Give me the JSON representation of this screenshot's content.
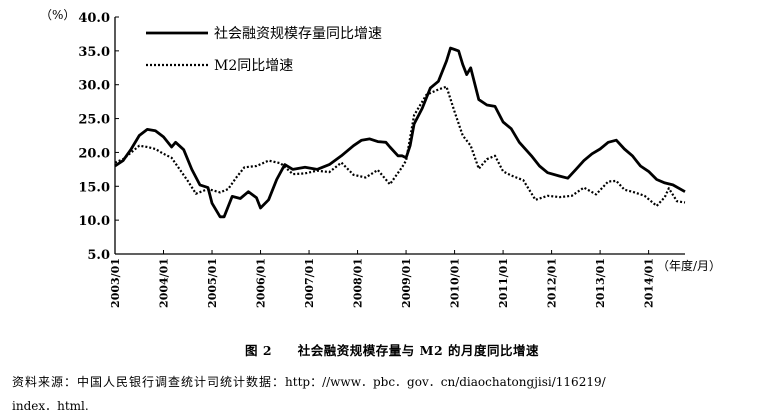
{
  "chart_data": {
    "type": "line",
    "y_unit_label": "（%）",
    "x_unit_label": "（年度/月）",
    "ylim": [
      5.0,
      40.0
    ],
    "y_ticks": [
      "5.0",
      "10.0",
      "15.0",
      "20.0",
      "25.0",
      "30.0",
      "35.0",
      "40.0"
    ],
    "x_ticks": [
      "2003/01",
      "2004/01",
      "2005/01",
      "2006/01",
      "2007/01",
      "2008/01",
      "2009/01",
      "2010/01",
      "2011/01",
      "2012/01",
      "2013/01",
      "2014/01"
    ],
    "xlim": [
      "2003/01",
      "2014/10"
    ],
    "legend_position": "top-left",
    "grid": false,
    "series": [
      {
        "name": "社会融资规模存量同比增速",
        "style": "solid",
        "color": "#000000",
        "points": [
          [
            "2003/01",
            18.0
          ],
          [
            "2003/03",
            18.8
          ],
          [
            "2003/05",
            20.5
          ],
          [
            "2003/07",
            22.5
          ],
          [
            "2003/09",
            23.4
          ],
          [
            "2003/11",
            23.2
          ],
          [
            "2004/01",
            22.3
          ],
          [
            "2004/03",
            20.8
          ],
          [
            "2004/04",
            21.5
          ],
          [
            "2004/06",
            20.4
          ],
          [
            "2004/08",
            17.5
          ],
          [
            "2004/10",
            15.2
          ],
          [
            "2004/12",
            14.8
          ],
          [
            "2005/01",
            12.5
          ],
          [
            "2005/03",
            10.5
          ],
          [
            "2005/04",
            10.5
          ],
          [
            "2005/06",
            13.5
          ],
          [
            "2005/08",
            13.2
          ],
          [
            "2005/10",
            14.2
          ],
          [
            "2005/12",
            13.3
          ],
          [
            "2006/01",
            11.8
          ],
          [
            "2006/03",
            13.0
          ],
          [
            "2006/05",
            16.0
          ],
          [
            "2006/07",
            18.2
          ],
          [
            "2006/09",
            17.5
          ],
          [
            "2006/12",
            17.8
          ],
          [
            "2007/03",
            17.5
          ],
          [
            "2007/06",
            18.2
          ],
          [
            "2007/09",
            19.5
          ],
          [
            "2007/12",
            21.0
          ],
          [
            "2008/02",
            21.8
          ],
          [
            "2008/04",
            22.0
          ],
          [
            "2008/06",
            21.6
          ],
          [
            "2008/08",
            21.5
          ],
          [
            "2008/09",
            20.8
          ],
          [
            "2008/11",
            19.5
          ],
          [
            "2008/12",
            19.5
          ],
          [
            "2009/01",
            19.2
          ],
          [
            "2009/02",
            21.0
          ],
          [
            "2009/03",
            24.2
          ],
          [
            "2009/05",
            26.5
          ],
          [
            "2009/07",
            29.5
          ],
          [
            "2009/09",
            30.5
          ],
          [
            "2009/11",
            33.5
          ],
          [
            "2009/12",
            35.4
          ],
          [
            "2010/01",
            35.2
          ],
          [
            "2010/02",
            35.0
          ],
          [
            "2010/03",
            33.0
          ],
          [
            "2010/04",
            31.5
          ],
          [
            "2010/05",
            32.5
          ],
          [
            "2010/07",
            27.8
          ],
          [
            "2010/09",
            27.0
          ],
          [
            "2010/11",
            26.8
          ],
          [
            "2011/01",
            24.5
          ],
          [
            "2011/03",
            23.5
          ],
          [
            "2011/05",
            21.5
          ],
          [
            "2011/08",
            19.5
          ],
          [
            "2011/10",
            18.0
          ],
          [
            "2011/12",
            17.0
          ],
          [
            "2012/03",
            16.5
          ],
          [
            "2012/05",
            16.2
          ],
          [
            "2012/07",
            17.5
          ],
          [
            "2012/09",
            18.8
          ],
          [
            "2012/11",
            19.8
          ],
          [
            "2013/01",
            20.5
          ],
          [
            "2013/03",
            21.5
          ],
          [
            "2013/05",
            21.8
          ],
          [
            "2013/07",
            20.5
          ],
          [
            "2013/09",
            19.5
          ],
          [
            "2013/11",
            18.0
          ],
          [
            "2014/01",
            17.2
          ],
          [
            "2014/03",
            16.0
          ],
          [
            "2014/05",
            15.5
          ],
          [
            "2014/07",
            15.2
          ],
          [
            "2014/10",
            14.2
          ]
        ]
      },
      {
        "name": "M2同比增速",
        "style": "dotted",
        "color": "#000000",
        "points": [
          [
            "2003/01",
            18.5
          ],
          [
            "2003/03",
            19.0
          ],
          [
            "2003/05",
            20.0
          ],
          [
            "2003/07",
            21.0
          ],
          [
            "2003/09",
            20.8
          ],
          [
            "2003/11",
            20.5
          ],
          [
            "2004/01",
            19.8
          ],
          [
            "2004/03",
            19.2
          ],
          [
            "2004/05",
            17.5
          ],
          [
            "2004/07",
            15.8
          ],
          [
            "2004/09",
            13.9
          ],
          [
            "2004/12",
            14.6
          ],
          [
            "2005/03",
            14.1
          ],
          [
            "2005/05",
            14.6
          ],
          [
            "2005/07",
            16.3
          ],
          [
            "2005/09",
            17.8
          ],
          [
            "2005/12",
            18.0
          ],
          [
            "2006/03",
            18.8
          ],
          [
            "2006/06",
            18.4
          ],
          [
            "2006/09",
            16.8
          ],
          [
            "2006/12",
            16.9
          ],
          [
            "2007/03",
            17.3
          ],
          [
            "2007/06",
            17.1
          ],
          [
            "2007/09",
            18.5
          ],
          [
            "2007/12",
            16.7
          ],
          [
            "2008/03",
            16.3
          ],
          [
            "2008/06",
            17.4
          ],
          [
            "2008/09",
            15.3
          ],
          [
            "2008/12",
            17.8
          ],
          [
            "2009/01",
            18.8
          ],
          [
            "2009/03",
            25.5
          ],
          [
            "2009/06",
            28.5
          ],
          [
            "2009/09",
            29.3
          ],
          [
            "2009/11",
            29.7
          ],
          [
            "2010/01",
            26.0
          ],
          [
            "2010/03",
            22.5
          ],
          [
            "2010/05",
            21.0
          ],
          [
            "2010/07",
            17.6
          ],
          [
            "2010/09",
            19.0
          ],
          [
            "2010/11",
            19.5
          ],
          [
            "2011/01",
            17.2
          ],
          [
            "2011/03",
            16.6
          ],
          [
            "2011/06",
            15.9
          ],
          [
            "2011/09",
            13.0
          ],
          [
            "2011/12",
            13.6
          ],
          [
            "2012/03",
            13.4
          ],
          [
            "2012/06",
            13.6
          ],
          [
            "2012/09",
            14.8
          ],
          [
            "2012/12",
            13.8
          ],
          [
            "2013/03",
            15.7
          ],
          [
            "2013/05",
            15.8
          ],
          [
            "2013/07",
            14.5
          ],
          [
            "2013/09",
            14.2
          ],
          [
            "2013/12",
            13.6
          ],
          [
            "2014/03",
            12.1
          ],
          [
            "2014/05",
            13.4
          ],
          [
            "2014/06",
            14.7
          ],
          [
            "2014/08",
            12.8
          ],
          [
            "2014/10",
            12.6
          ]
        ]
      }
    ]
  },
  "caption": {
    "figure_no": "图 2",
    "title": "社会融资规模存量与 M2 的月度同比增速"
  },
  "source": {
    "label": "资料来源：中国人民银行调查统计司统计数据：",
    "url_line1": "http：//www．pbc．gov．cn/diaochatongjisi/116219/",
    "url_line2": "index．html."
  }
}
